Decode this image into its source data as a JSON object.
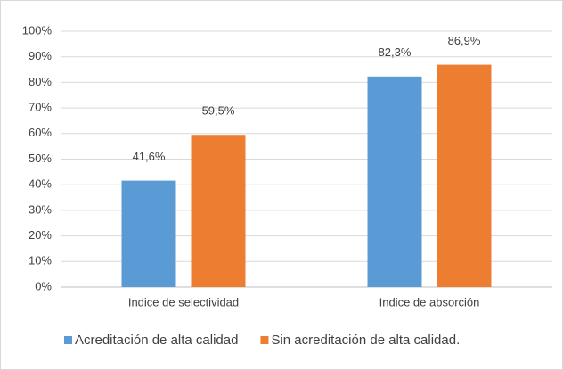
{
  "chart_data": {
    "type": "bar",
    "categories": [
      "Indice de selectividad",
      "Indice de absorción"
    ],
    "series": [
      {
        "name": "Acreditación de alta calidad",
        "color": "#5b9bd5",
        "values": [
          41.6,
          82.3
        ],
        "value_labels": [
          "41,6%",
          "82,3%"
        ]
      },
      {
        "name": "Sin acreditación de alta calidad.",
        "color": "#ed7d31",
        "values": [
          59.5,
          86.9
        ],
        "value_labels": [
          "59,5%",
          "86,9%"
        ]
      }
    ],
    "ylim": [
      0,
      100
    ],
    "yticks": [
      {
        "value": 0,
        "label": "0%"
      },
      {
        "value": 10,
        "label": "10%"
      },
      {
        "value": 20,
        "label": "20%"
      },
      {
        "value": 30,
        "label": "30%"
      },
      {
        "value": 40,
        "label": "40%"
      },
      {
        "value": 50,
        "label": "50%"
      },
      {
        "value": 60,
        "label": "60%"
      },
      {
        "value": 70,
        "label": "70%"
      },
      {
        "value": 80,
        "label": "80%"
      },
      {
        "value": 90,
        "label": "90%"
      },
      {
        "value": 100,
        "label": "100%"
      }
    ],
    "grid": true,
    "legend": "bottom"
  }
}
